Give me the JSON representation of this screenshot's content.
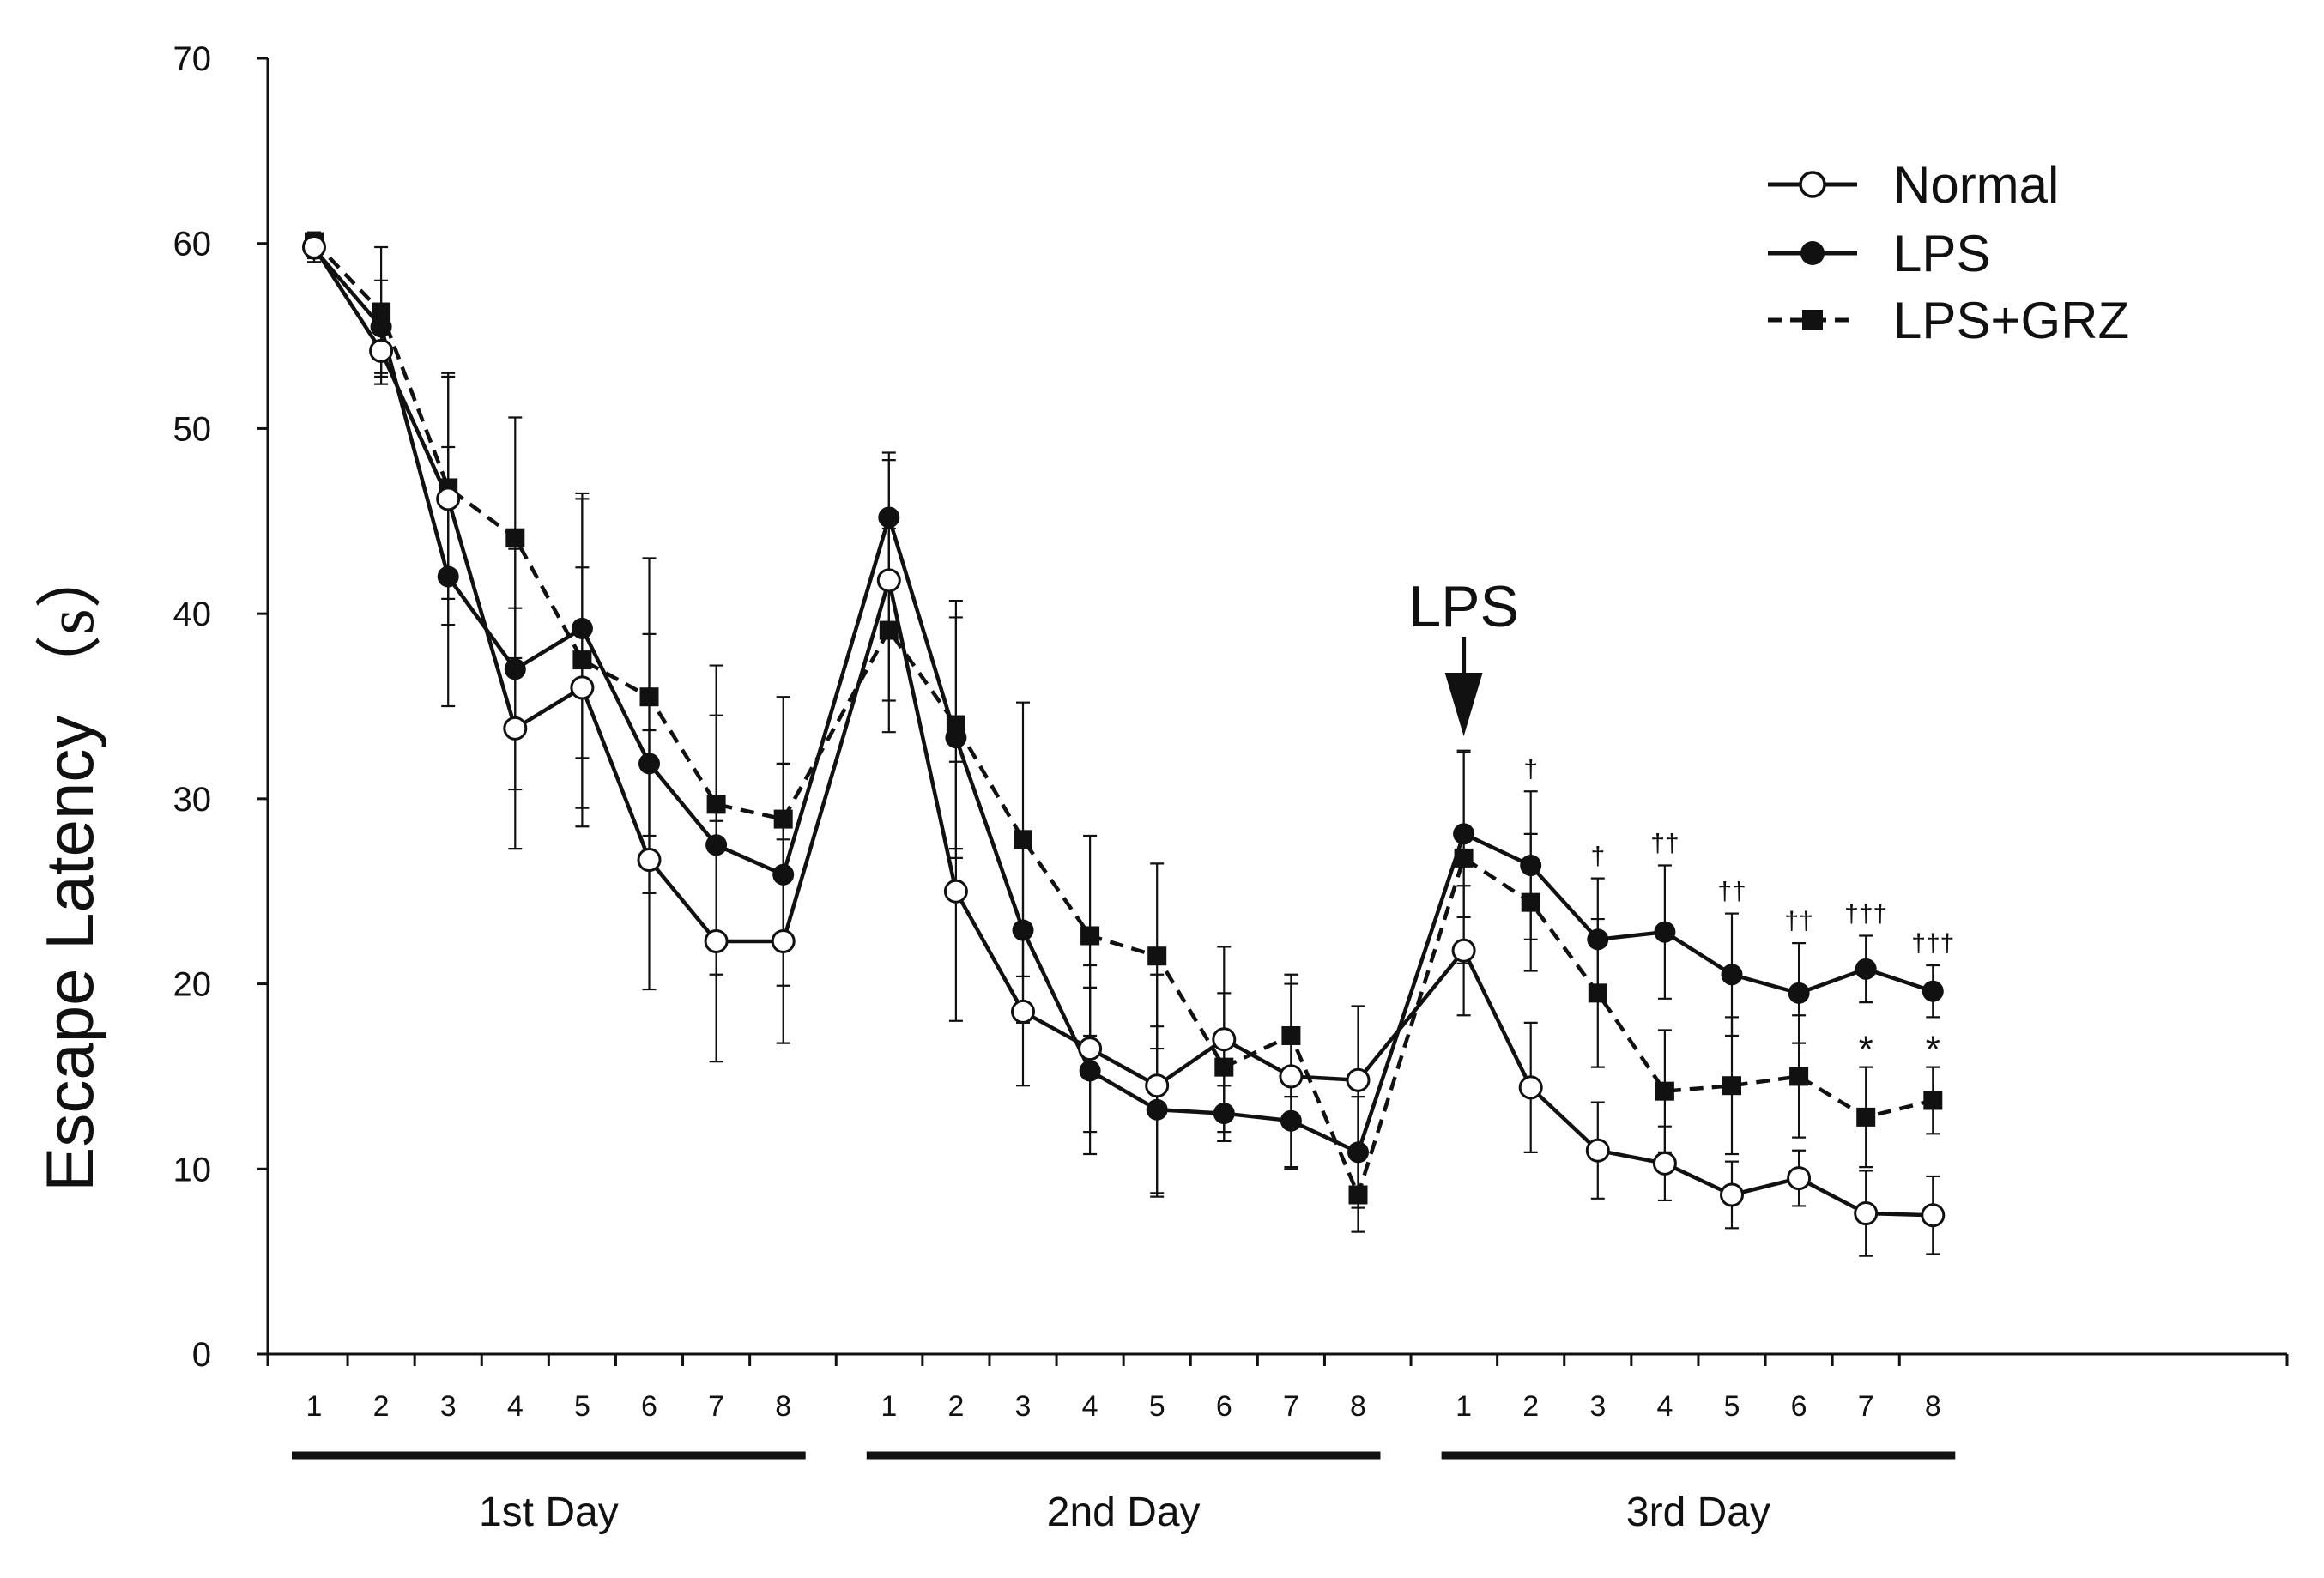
{
  "chart_data": {
    "type": "line",
    "title": "",
    "ylabel": "Escape Latency",
    "ylabel_unit": "（s）",
    "xlabel": "",
    "ylim": [
      0,
      70
    ],
    "yticks": [
      0,
      10,
      20,
      30,
      40,
      50,
      60,
      70
    ],
    "grid": false,
    "legend_position": "top-right",
    "groups": [
      {
        "label": "1st Day",
        "trials": [
          "1",
          "2",
          "3",
          "4",
          "5",
          "6",
          "7",
          "8"
        ]
      },
      {
        "label": "2nd Day",
        "trials": [
          "1",
          "2",
          "3",
          "4",
          "5",
          "6",
          "7",
          "8"
        ]
      },
      {
        "label": "3rd Day",
        "trials": [
          "1",
          "2",
          "3",
          "4",
          "5",
          "6",
          "7",
          "8"
        ]
      }
    ],
    "series": [
      {
        "name": "Normal",
        "marker": "open-circle",
        "line": "solid",
        "values": [
          59.8,
          54.2,
          46.2,
          33.8,
          36.0,
          26.7,
          22.3,
          22.3,
          41.8,
          25.0,
          18.5,
          16.5,
          14.5,
          17.0,
          15.0,
          14.8,
          21.8,
          14.4,
          11.0,
          10.3,
          8.6,
          9.5,
          7.6,
          7.5
        ],
        "errors": [
          0.8,
          1.8,
          6.8,
          6.5,
          6.5,
          7.0,
          6.5,
          5.5,
          6.5,
          7.0,
          4.0,
          4.5,
          6.0,
          5.0,
          5.0,
          4.0,
          3.5,
          3.5,
          2.6,
          2.0,
          1.8,
          1.5,
          2.3,
          2.1
        ]
      },
      {
        "name": "LPS",
        "marker": "filled-circle",
        "line": "solid",
        "values": [
          59.7,
          55.5,
          42.0,
          37.0,
          39.2,
          31.9,
          27.5,
          25.9,
          45.2,
          33.3,
          22.9,
          15.3,
          13.2,
          13.0,
          12.6,
          10.9,
          28.1,
          26.4,
          22.4,
          22.8,
          20.5,
          19.5,
          20.8,
          19.6
        ],
        "errors": [
          0.5,
          2.5,
          7.0,
          6.5,
          7.0,
          7.0,
          7.0,
          6.0,
          3.5,
          6.5,
          5.0,
          4.5,
          4.5,
          1.5,
          2.5,
          3.0,
          4.5,
          4.0,
          3.3,
          3.6,
          3.3,
          2.7,
          1.8,
          1.4
        ]
      },
      {
        "name": "LPS+GRZ",
        "marker": "filled-square",
        "line": "dashed",
        "values": [
          60.1,
          56.3,
          46.8,
          44.1,
          37.5,
          35.5,
          29.7,
          28.9,
          39.1,
          34.0,
          27.8,
          22.6,
          21.5,
          15.5,
          17.2,
          8.6,
          26.8,
          24.4,
          19.5,
          14.2,
          14.5,
          15.0,
          12.8,
          13.7
        ],
        "errors": [
          0.5,
          3.5,
          6.0,
          6.5,
          9.0,
          7.5,
          7.5,
          6.6,
          5.5,
          6.7,
          7.4,
          5.4,
          5.0,
          4.0,
          3.3,
          2.0,
          5.7,
          3.7,
          4.0,
          3.3,
          3.7,
          3.3,
          2.7,
          1.8
        ]
      }
    ],
    "annotations": [
      {
        "text": "LPS",
        "type": "arrow",
        "group": 3,
        "trial": 1
      }
    ],
    "significance_lps": [
      {
        "group": 3,
        "trial": 2,
        "text": "†"
      },
      {
        "group": 3,
        "trial": 3,
        "text": "†"
      },
      {
        "group": 3,
        "trial": 4,
        "text": "††"
      },
      {
        "group": 3,
        "trial": 5,
        "text": "††"
      },
      {
        "group": 3,
        "trial": 6,
        "text": "††"
      },
      {
        "group": 3,
        "trial": 7,
        "text": "†††"
      },
      {
        "group": 3,
        "trial": 8,
        "text": "†††"
      }
    ],
    "significance_grz": [
      {
        "group": 3,
        "trial": 7,
        "text": "*"
      },
      {
        "group": 3,
        "trial": 8,
        "text": "*"
      }
    ]
  },
  "colors": {
    "ink": "#111111",
    "marker_fill_open": "#ffffff"
  }
}
